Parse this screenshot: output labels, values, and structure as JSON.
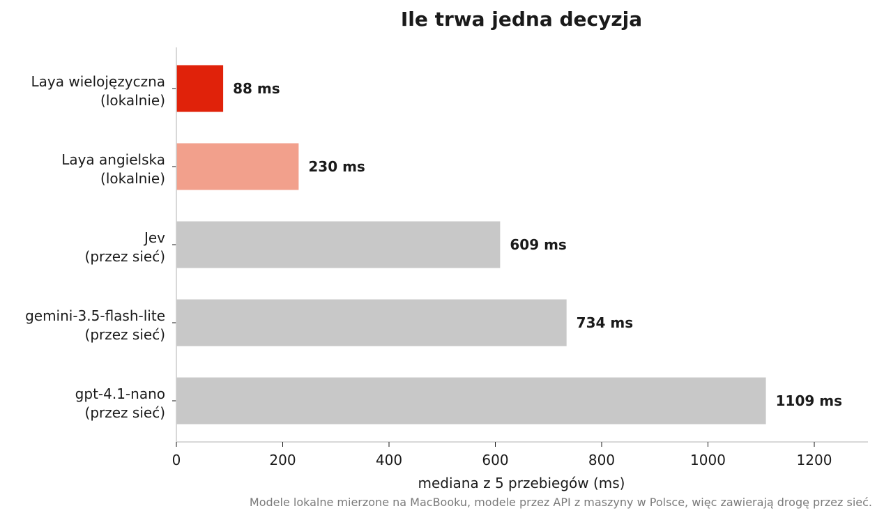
{
  "chart_data": {
    "type": "bar",
    "orientation": "horizontal",
    "title": "Ile trwa jedna decyzja",
    "xlabel": "mediana z 5 przebiegów (ms)",
    "ylabel": "",
    "xlim": [
      0,
      1300
    ],
    "xticks": [
      0,
      200,
      400,
      600,
      800,
      1000,
      1200
    ],
    "categories": [
      [
        "Laya wielojęzyczna",
        "(lokalnie)"
      ],
      [
        "Laya angielska",
        "(lokalnie)"
      ],
      [
        "Jev",
        "(przez sieć)"
      ],
      [
        "gemini-3.5-flash-lite",
        "(przez sieć)"
      ],
      [
        "gpt-4.1-nano",
        "(przez sieć)"
      ]
    ],
    "values": [
      88,
      230,
      609,
      734,
      1109
    ],
    "value_labels": [
      "88 ms",
      "230 ms",
      "609 ms",
      "734 ms",
      "1109 ms"
    ],
    "colors": [
      "#e0220a",
      "#f2a08c",
      "#c8c8c8",
      "#c8c8c8",
      "#c8c8c8"
    ],
    "grid": false,
    "legend": "none",
    "footnote": "Modele lokalne mierzone na MacBooku, modele przez API z maszyny w Polsce, więc zawierają drogę przez sieć."
  },
  "style": {
    "axis_color": "#cccccc",
    "text_color": "#1a1a1a",
    "footnote_color": "#7a7a7a"
  }
}
